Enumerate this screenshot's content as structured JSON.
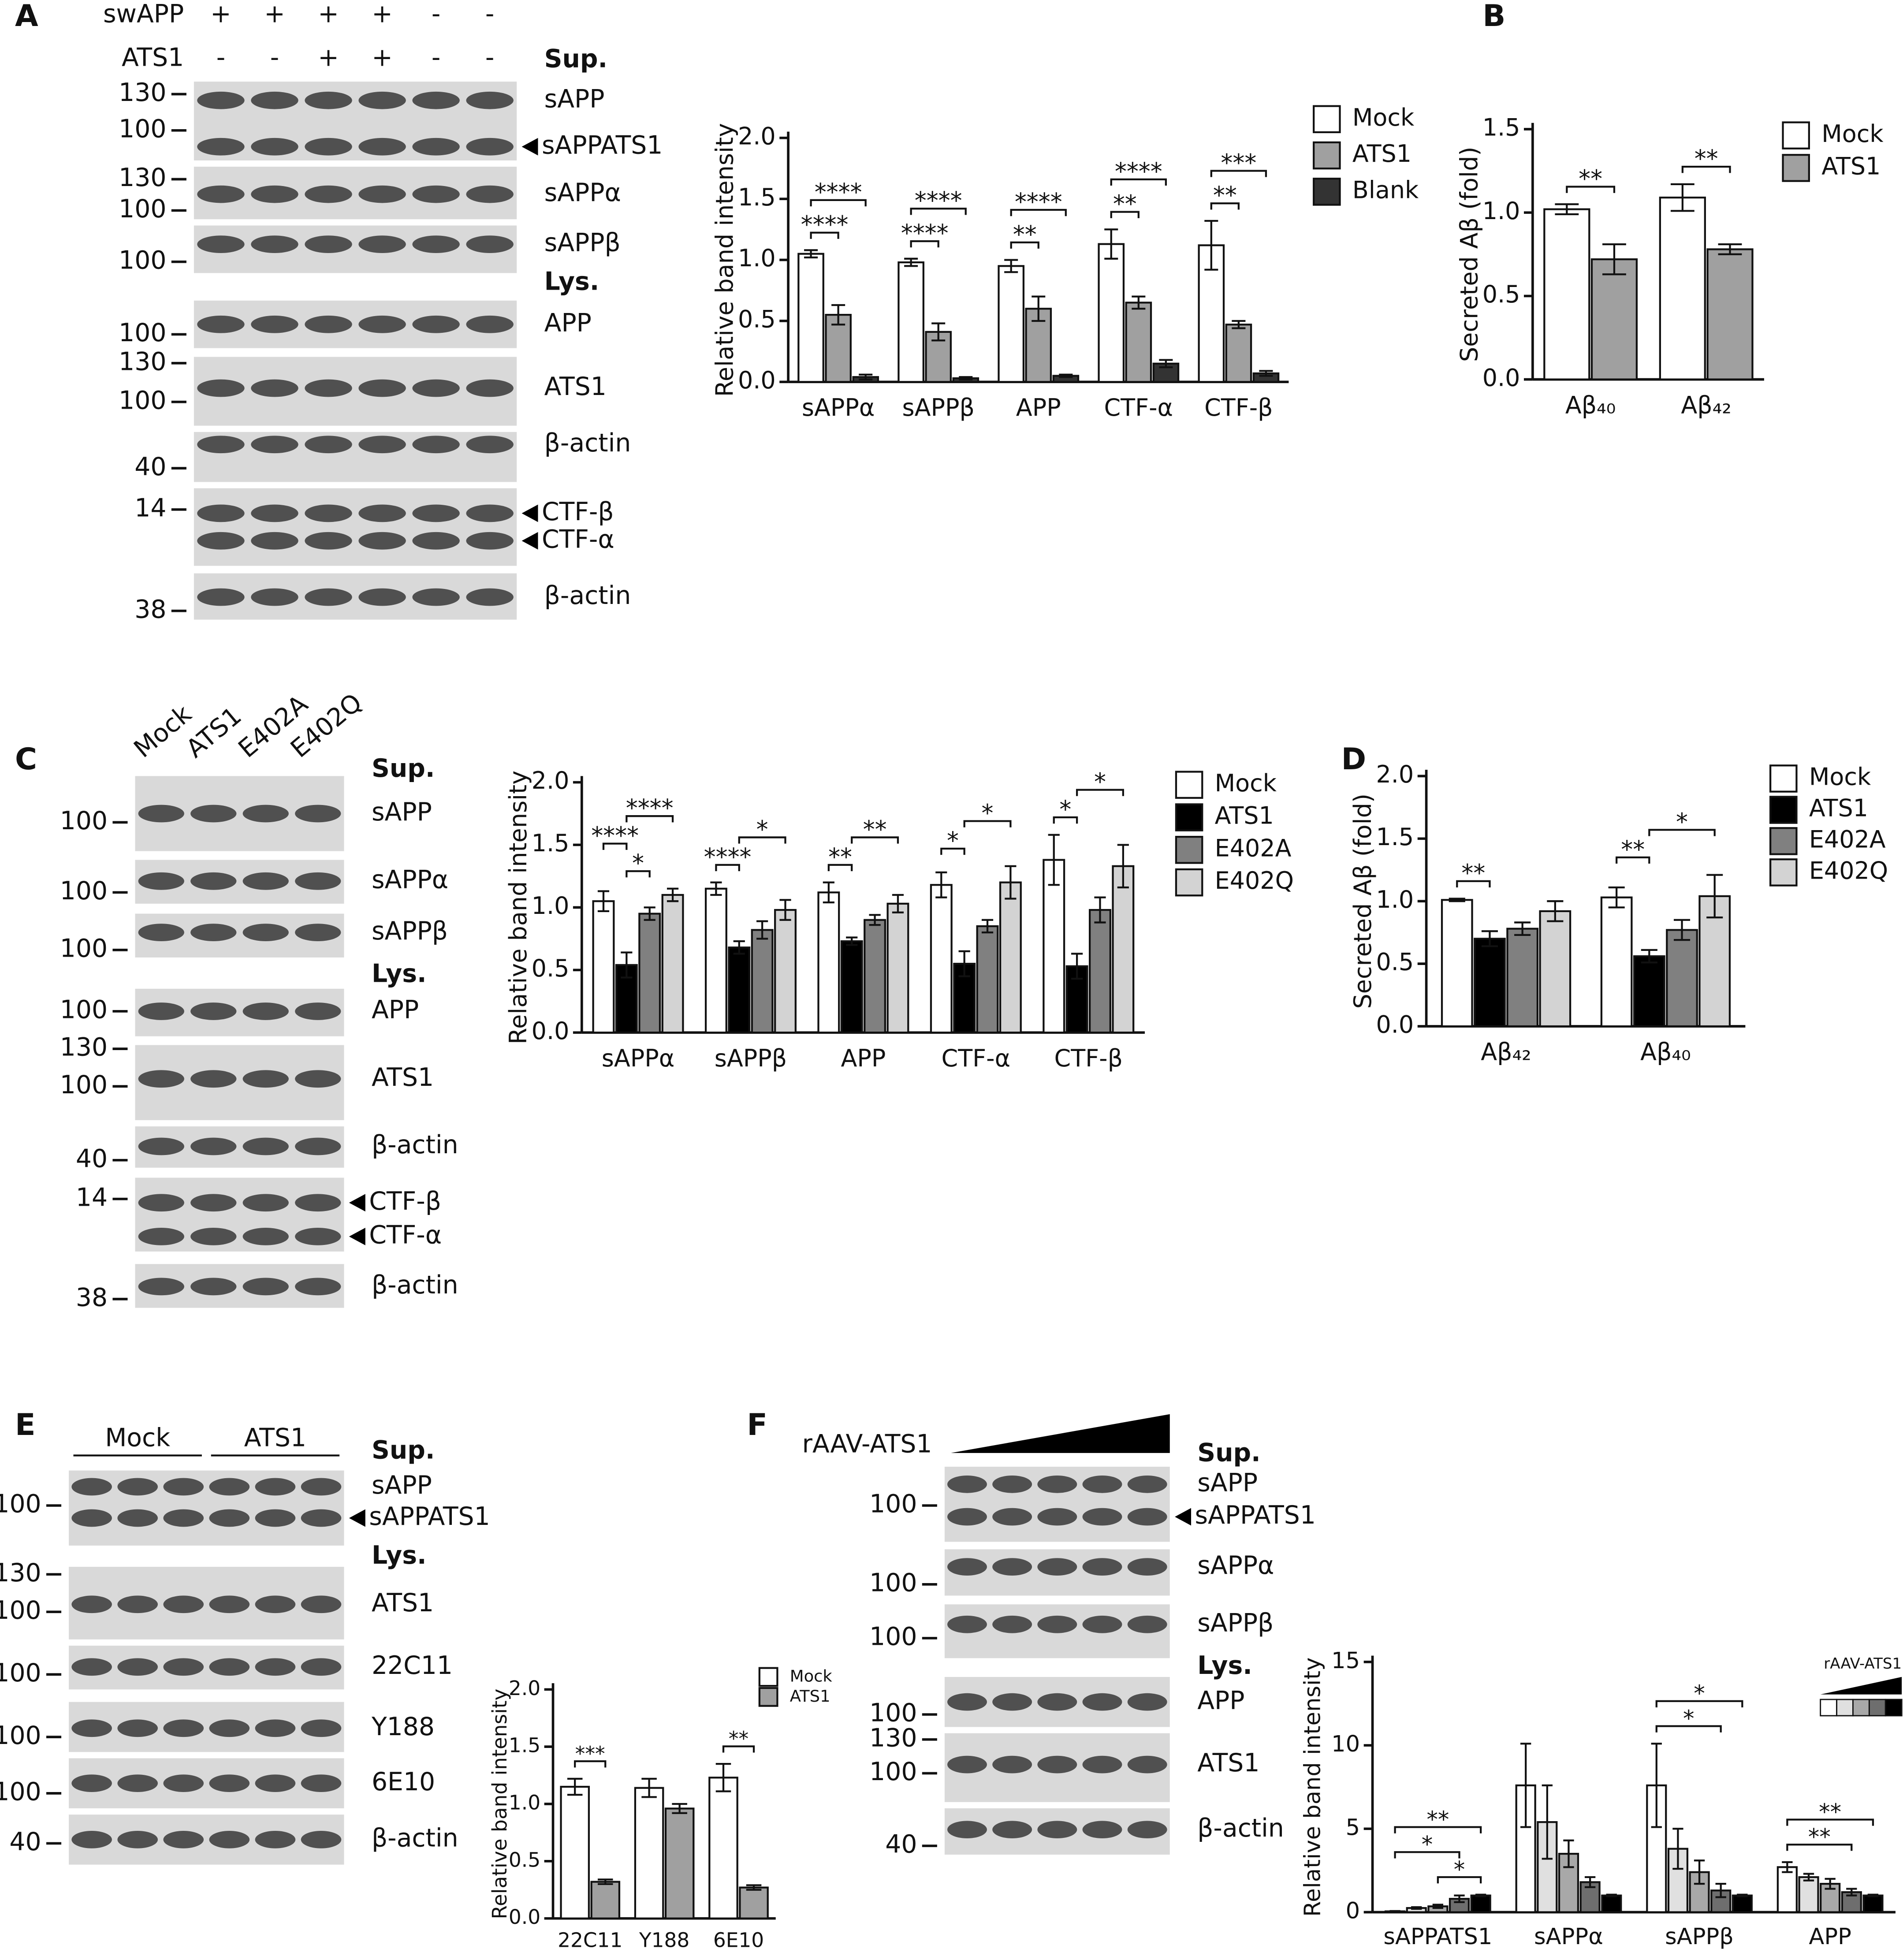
{
  "panel_labels": [
    "A",
    "B",
    "C",
    "D",
    "E",
    "F"
  ],
  "blots": [
    {
      "header": {
        "rows": [
          {
            "name": "swAPP",
            "signs": [
              "+",
              "+",
              "+",
              "+",
              "-",
              "-"
            ]
          },
          {
            "name": "ATS1",
            "signs": [
              "-",
              "-",
              "+",
              "+",
              "-",
              "-"
            ]
          }
        ]
      },
      "sections": [
        "Sup.",
        "Lys."
      ],
      "strips": [
        {
          "markers": [
            "130",
            "100"
          ],
          "labels": [
            "sAPP",
            "sAPPATS1"
          ]
        },
        {
          "markers": [
            "130",
            "100"
          ],
          "labels": [
            "sAPPα"
          ]
        },
        {
          "markers": [
            "100"
          ],
          "labels": [
            "sAPPβ"
          ]
        },
        {
          "markers": [
            "100"
          ],
          "labels": [
            "APP"
          ]
        },
        {
          "markers": [
            "130",
            "100"
          ],
          "labels": [
            "ATS1"
          ]
        },
        {
          "markers": [
            "40"
          ],
          "labels": [
            "β-actin"
          ]
        },
        {
          "markers": [
            "14"
          ],
          "labels": [
            "CTF-β",
            "CTF-α"
          ]
        },
        {
          "markers": [
            "38"
          ],
          "labels": [
            "β-actin"
          ]
        }
      ]
    },
    {
      "header": {
        "lanes": [
          "Mock",
          "ATS1",
          "E402A",
          "E402Q"
        ]
      },
      "sections": [
        "Sup.",
        "Lys."
      ],
      "strips": [
        {
          "markers": [
            "100"
          ],
          "labels": [
            "sAPP"
          ]
        },
        {
          "markers": [
            "100"
          ],
          "labels": [
            "sAPPα"
          ]
        },
        {
          "markers": [
            "100"
          ],
          "labels": [
            "sAPPβ"
          ]
        },
        {
          "markers": [
            "100"
          ],
          "labels": [
            "APP"
          ]
        },
        {
          "markers": [
            "130",
            "100"
          ],
          "labels": [
            "ATS1"
          ]
        },
        {
          "markers": [
            "40"
          ],
          "labels": [
            "β-actin"
          ]
        },
        {
          "markers": [
            "14"
          ],
          "labels": [
            "CTF-β",
            "CTF-α"
          ]
        },
        {
          "markers": [
            "38"
          ],
          "labels": [
            "β-actin"
          ]
        }
      ]
    },
    {
      "header": {
        "groups": [
          "Mock",
          "ATS1"
        ]
      },
      "sections": [
        "Sup.",
        "Lys."
      ],
      "strips": [
        {
          "markers": [
            "100"
          ],
          "labels": [
            "sAPP",
            "sAPPATS1"
          ]
        },
        {
          "markers": [
            "130",
            "100"
          ],
          "labels": [
            "ATS1"
          ]
        },
        {
          "markers": [
            "100"
          ],
          "labels": [
            "22C11"
          ]
        },
        {
          "markers": [
            "100"
          ],
          "labels": [
            "Y188"
          ]
        },
        {
          "markers": [
            "100"
          ],
          "labels": [
            "6E10"
          ]
        },
        {
          "markers": [
            "40"
          ],
          "labels": [
            "β-actin"
          ]
        }
      ]
    },
    {
      "header": {
        "title": "rAAV-ATS1"
      },
      "sections": [
        "Sup.",
        "Lys."
      ],
      "strips": [
        {
          "markers": [
            "100"
          ],
          "labels": [
            "sAPP",
            "sAPPATS1"
          ]
        },
        {
          "markers": [
            "100"
          ],
          "labels": [
            "sAPPα"
          ]
        },
        {
          "markers": [
            "100"
          ],
          "labels": [
            "sAPPβ"
          ]
        },
        {
          "markers": [
            "100"
          ],
          "labels": [
            "APP"
          ]
        },
        {
          "markers": [
            "130",
            "100"
          ],
          "labels": [
            "ATS1"
          ]
        },
        {
          "markers": [
            "40"
          ],
          "labels": [
            "β-actin"
          ]
        }
      ]
    }
  ],
  "chart_data": [
    {
      "type": "bar",
      "ylabel": "Relative band intensity",
      "categories": [
        "sAPPα",
        "sAPPβ",
        "APP",
        "CTF-α",
        "CTF-β"
      ],
      "series": [
        {
          "name": "Mock",
          "color": "#ffffff",
          "values": [
            1.05,
            0.98,
            0.95,
            1.13,
            1.12
          ],
          "errors": [
            0.03,
            0.03,
            0.05,
            0.12,
            0.2
          ]
        },
        {
          "name": "ATS1",
          "color": "#a0a0a0",
          "values": [
            0.55,
            0.41,
            0.6,
            0.65,
            0.47
          ],
          "errors": [
            0.08,
            0.07,
            0.1,
            0.05,
            0.03
          ]
        },
        {
          "name": "Blank",
          "color": "#333333",
          "values": [
            0.04,
            0.03,
            0.05,
            0.15,
            0.07
          ],
          "errors": [
            0.02,
            0.01,
            0.01,
            0.03,
            0.02
          ]
        }
      ],
      "ylim": [
        0,
        2
      ],
      "yticks": [
        {
          "value": 0,
          "label": "0.0"
        },
        0.5,
        {
          "value": 1,
          "label": "1.0"
        },
        1.5,
        {
          "value": 2,
          "label": "2.0"
        }
      ],
      "legend": "right",
      "annotations": [
        {
          "category": 0,
          "from": 0,
          "to": 1,
          "text": "****"
        },
        {
          "category": 0,
          "from": 0,
          "to": 2,
          "text": "****"
        },
        {
          "category": 1,
          "from": 0,
          "to": 1,
          "text": "****"
        },
        {
          "category": 1,
          "from": 0,
          "to": 2,
          "text": "****"
        },
        {
          "category": 2,
          "from": 0,
          "to": 1,
          "text": "**"
        },
        {
          "category": 2,
          "from": 0,
          "to": 2,
          "text": "****"
        },
        {
          "category": 3,
          "from": 0,
          "to": 1,
          "text": "**"
        },
        {
          "category": 3,
          "from": 0,
          "to": 2,
          "text": "****"
        },
        {
          "category": 4,
          "from": 0,
          "to": 1,
          "text": "**"
        },
        {
          "category": 4,
          "from": 0,
          "to": 2,
          "text": "***"
        }
      ]
    },
    {
      "type": "bar",
      "ylabel": "Secreted Aβ (fold)",
      "categories": [
        "Aβ₄₀",
        "Aβ₄₂"
      ],
      "series": [
        {
          "name": "Mock",
          "color": "#ffffff",
          "values": [
            1.02,
            1.09
          ],
          "errors": [
            0.03,
            0.08
          ]
        },
        {
          "name": "ATS1",
          "color": "#a0a0a0",
          "values": [
            0.72,
            0.78
          ],
          "errors": [
            0.09,
            0.03
          ]
        }
      ],
      "ylim": [
        0,
        1.5
      ],
      "yticks": [
        {
          "value": 0,
          "label": "0.0"
        },
        0.5,
        {
          "value": 1,
          "label": "1.0"
        },
        1.5
      ],
      "legend": "right",
      "annotations": [
        {
          "category": 0,
          "from": 0,
          "to": 1,
          "text": "**"
        },
        {
          "category": 1,
          "from": 0,
          "to": 1,
          "text": "**"
        }
      ]
    },
    {
      "type": "bar",
      "ylabel": "Relative band intensity",
      "categories": [
        "sAPPα",
        "sAPPβ",
        "APP",
        "CTF-α",
        "CTF-β"
      ],
      "series": [
        {
          "name": "Mock",
          "color": "#ffffff",
          "values": [
            1.05,
            1.15,
            1.12,
            1.18,
            1.38
          ],
          "errors": [
            0.08,
            0.05,
            0.08,
            0.1,
            0.2
          ]
        },
        {
          "name": "ATS1",
          "color": "#000000",
          "values": [
            0.54,
            0.68,
            0.73,
            0.55,
            0.53
          ],
          "errors": [
            0.1,
            0.05,
            0.03,
            0.1,
            0.1
          ]
        },
        {
          "name": "E402A",
          "color": "#808080",
          "values": [
            0.95,
            0.82,
            0.9,
            0.85,
            0.98
          ],
          "errors": [
            0.05,
            0.07,
            0.04,
            0.05,
            0.1
          ]
        },
        {
          "name": "E402Q",
          "color": "#d3d3d3",
          "values": [
            1.1,
            0.98,
            1.03,
            1.2,
            1.33
          ],
          "errors": [
            0.05,
            0.08,
            0.07,
            0.13,
            0.17
          ]
        }
      ],
      "ylim": [
        0,
        2
      ],
      "yticks": [
        {
          "value": 0,
          "label": "0.0"
        },
        0.5,
        {
          "value": 1,
          "label": "1.0"
        },
        1.5,
        {
          "value": 2,
          "label": "2.0"
        }
      ],
      "legend": "right",
      "annotations": [
        {
          "category": 0,
          "from": 1,
          "to": 2,
          "text": "*"
        },
        {
          "category": 0,
          "from": 0,
          "to": 1,
          "text": "****"
        },
        {
          "category": 0,
          "from": 1,
          "to": 3,
          "text": "****"
        },
        {
          "category": 1,
          "from": 0,
          "to": 1,
          "text": "****"
        },
        {
          "category": 1,
          "from": 1,
          "to": 3,
          "text": "*"
        },
        {
          "category": 2,
          "from": 0,
          "to": 1,
          "text": "**"
        },
        {
          "category": 2,
          "from": 1,
          "to": 3,
          "text": "**"
        },
        {
          "category": 3,
          "from": 0,
          "to": 1,
          "text": "*"
        },
        {
          "category": 3,
          "from": 1,
          "to": 3,
          "text": "*"
        },
        {
          "category": 4,
          "from": 0,
          "to": 1,
          "text": "*"
        },
        {
          "category": 4,
          "from": 1,
          "to": 3,
          "text": "*"
        }
      ]
    },
    {
      "type": "bar",
      "ylabel": "Secreted Aβ (fold)",
      "categories": [
        "Aβ₄₂",
        "Aβ₄₀"
      ],
      "series": [
        {
          "name": "Mock",
          "color": "#ffffff",
          "values": [
            1.01,
            1.03
          ],
          "errors": [
            0.01,
            0.08
          ]
        },
        {
          "name": "ATS1",
          "color": "#000000",
          "values": [
            0.7,
            0.56
          ],
          "errors": [
            0.06,
            0.05
          ]
        },
        {
          "name": "E402A",
          "color": "#808080",
          "values": [
            0.78,
            0.77
          ],
          "errors": [
            0.05,
            0.08
          ]
        },
        {
          "name": "E402Q",
          "color": "#d3d3d3",
          "values": [
            0.92,
            1.04
          ],
          "errors": [
            0.08,
            0.17
          ]
        }
      ],
      "ylim": [
        0,
        2
      ],
      "yticks": [
        {
          "value": 0,
          "label": "0.0"
        },
        0.5,
        {
          "value": 1,
          "label": "1.0"
        },
        1.5,
        {
          "value": 2,
          "label": "2.0"
        }
      ],
      "legend": "right",
      "annotations": [
        {
          "category": 0,
          "from": 0,
          "to": 1,
          "text": "**"
        },
        {
          "category": 1,
          "from": 0,
          "to": 1,
          "text": "**"
        },
        {
          "category": 1,
          "from": 1,
          "to": 3,
          "text": "*"
        }
      ]
    },
    {
      "type": "bar",
      "ylabel": "Relative band intensity",
      "categories": [
        "22C11",
        "Y188",
        "6E10"
      ],
      "series": [
        {
          "name": "Mock",
          "color": "#ffffff",
          "values": [
            1.15,
            1.14,
            1.23
          ],
          "errors": [
            0.07,
            0.08,
            0.12
          ]
        },
        {
          "name": "ATS1",
          "color": "#a0a0a0",
          "values": [
            0.32,
            0.96,
            0.27
          ],
          "errors": [
            0.02,
            0.04,
            0.02
          ]
        }
      ],
      "ylim": [
        0,
        2
      ],
      "yticks": [
        {
          "value": 0,
          "label": "0.0"
        },
        0.5,
        {
          "value": 1,
          "label": "1.0"
        },
        1.5,
        {
          "value": 2,
          "label": "2.0"
        }
      ],
      "legend": "right",
      "annotations": [
        {
          "category": 0,
          "from": 0,
          "to": 1,
          "text": "***"
        },
        {
          "category": 2,
          "from": 0,
          "to": 1,
          "text": "**"
        }
      ]
    },
    {
      "type": "bar",
      "ylabel": "Relative band intensity",
      "categories": [
        "sAPPATS1",
        "sAPPα",
        "sAPPβ",
        "APP"
      ],
      "series": [
        {
          "color": "#ffffff",
          "values": [
            0.05,
            7.6,
            7.6,
            2.7
          ],
          "errors": [
            0.02,
            2.5,
            2.5,
            0.3
          ]
        },
        {
          "color": "#e0e0e0",
          "values": [
            0.25,
            5.4,
            3.8,
            2.1
          ],
          "errors": [
            0.05,
            2.2,
            1.2,
            0.2
          ]
        },
        {
          "color": "#a8a8a8",
          "values": [
            0.35,
            3.5,
            2.4,
            1.7
          ],
          "errors": [
            0.1,
            0.8,
            0.7,
            0.3
          ]
        },
        {
          "color": "#6e6e6e",
          "values": [
            0.8,
            1.8,
            1.3,
            1.2
          ],
          "errors": [
            0.2,
            0.3,
            0.4,
            0.2
          ]
        },
        {
          "color": "#000000",
          "values": [
            1,
            1,
            1,
            1
          ],
          "errors": [
            0.05,
            0.05,
            0.05,
            0.05
          ]
        }
      ],
      "ylim": [
        0,
        15
      ],
      "yticks": [
        0,
        5,
        10,
        15
      ],
      "legend": "upper right",
      "legend_title": "rAAV-ATS1",
      "annotations": [
        {
          "category": 0,
          "from": 2,
          "to": 4,
          "text": "*"
        },
        {
          "category": 0,
          "from": 0,
          "to": 3,
          "text": "*"
        },
        {
          "category": 0,
          "from": 0,
          "to": 4,
          "text": "**"
        },
        {
          "category": 2,
          "from": 0,
          "to": 3,
          "text": "*"
        },
        {
          "category": 2,
          "from": 0,
          "to": 4,
          "text": "*"
        },
        {
          "category": 3,
          "from": 0,
          "to": 3,
          "text": "**"
        },
        {
          "category": 3,
          "from": 0,
          "to": 4,
          "text": "**"
        }
      ]
    }
  ]
}
